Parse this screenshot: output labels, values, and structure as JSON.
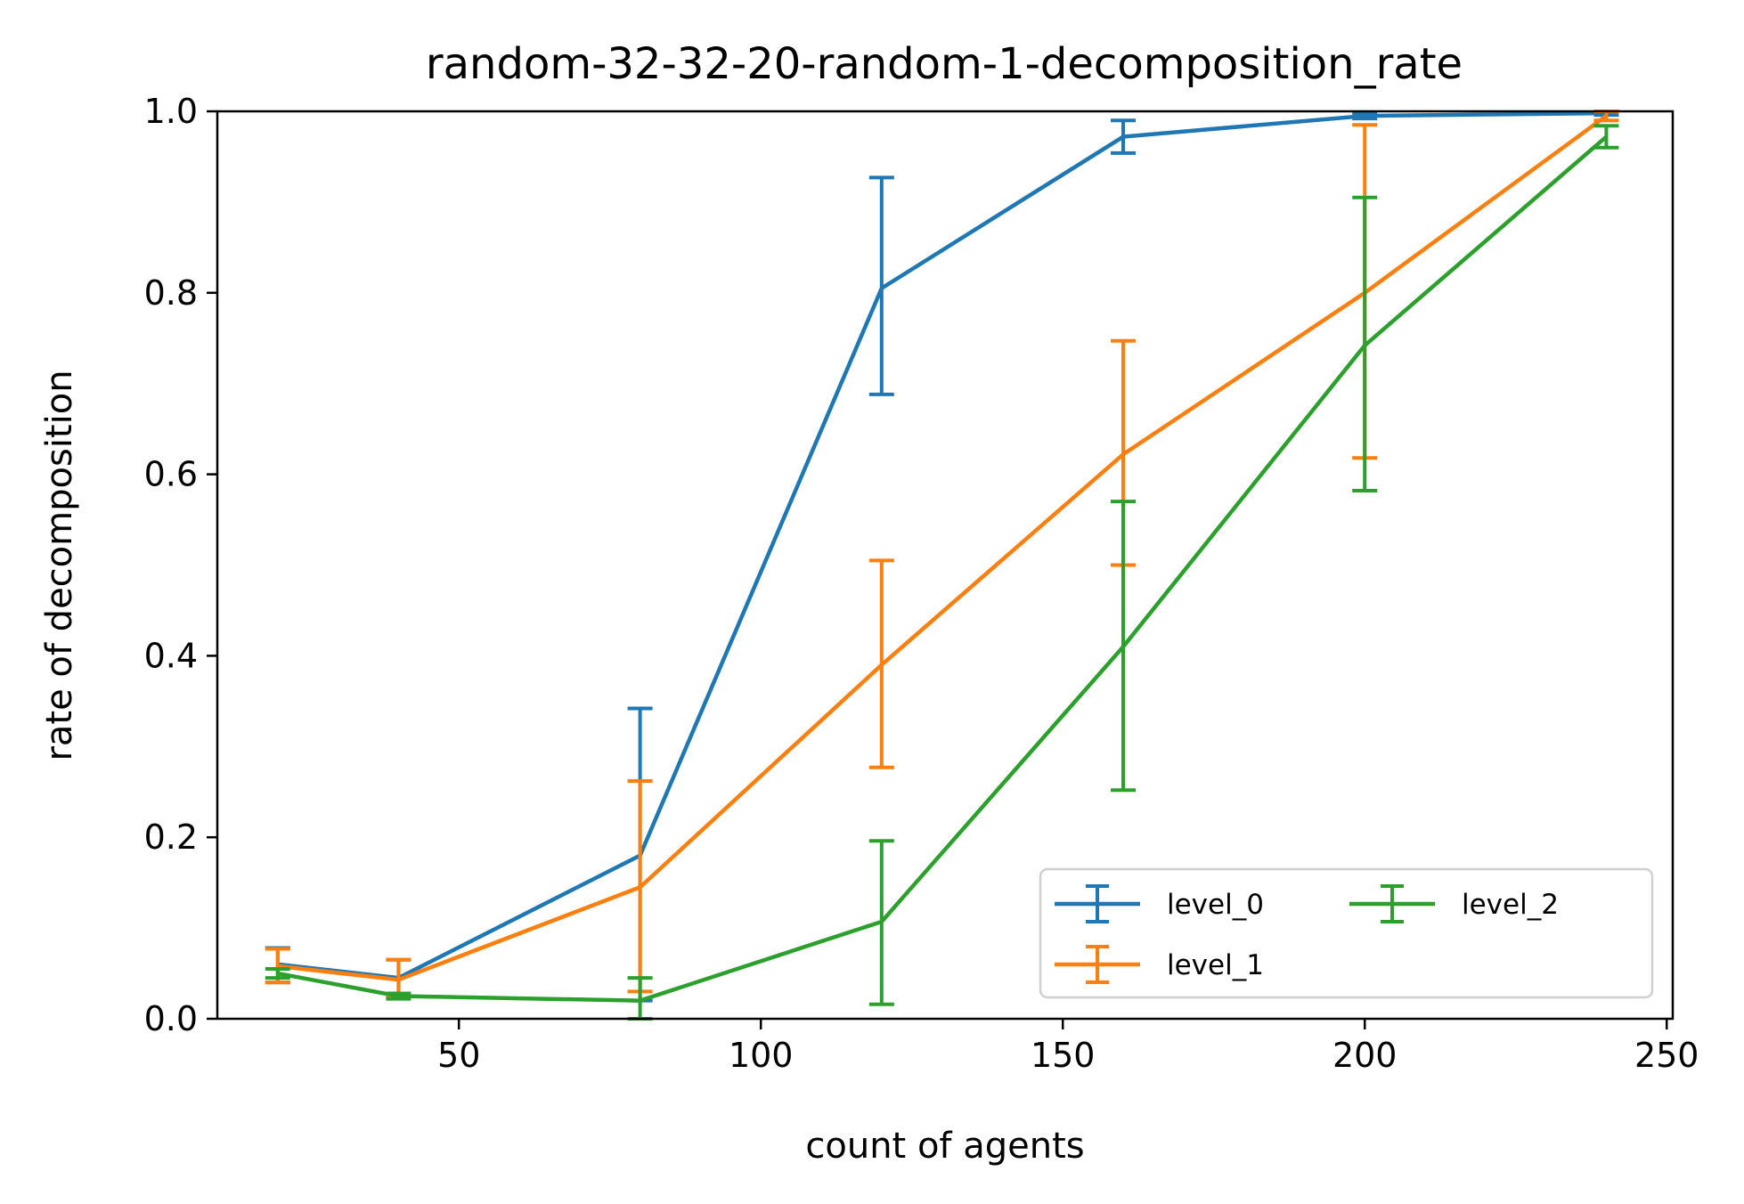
{
  "chart_data": {
    "type": "line",
    "title": "random-32-32-20-random-1-decomposition_rate",
    "xlabel": "count of agents",
    "ylabel": "rate of decomposition",
    "xlim": [
      10,
      251
    ],
    "ylim": [
      0.0,
      1.0
    ],
    "xticks": [
      50,
      100,
      150,
      200,
      250
    ],
    "yticks": [
      0.0,
      0.2,
      0.4,
      0.6,
      0.8,
      1.0
    ],
    "xtick_labels": [
      "50",
      "100",
      "150",
      "200",
      "250"
    ],
    "ytick_labels": [
      "0.0",
      "0.2",
      "0.4",
      "0.6",
      "0.8",
      "1.0"
    ],
    "grid": false,
    "legend_position": "lower-right",
    "legend_columns": 2,
    "x": [
      20,
      40,
      80,
      120,
      160,
      200,
      240
    ],
    "series": [
      {
        "name": "level_0",
        "color": "#1f77b4",
        "values": [
          0.06,
          0.045,
          0.18,
          0.805,
          0.972,
          0.995,
          0.998
        ],
        "err_low": [
          0.04,
          0.025,
          0.02,
          0.688,
          0.954,
          0.992,
          0.996
        ],
        "err_high": [
          0.078,
          0.065,
          0.342,
          0.927,
          0.99,
          0.998,
          1.0
        ]
      },
      {
        "name": "level_1",
        "color": "#ff7f0e",
        "values": [
          0.058,
          0.043,
          0.145,
          0.39,
          0.622,
          0.8,
          0.995
        ],
        "err_low": [
          0.04,
          0.025,
          0.03,
          0.277,
          0.5,
          0.618,
          0.99
        ],
        "err_high": [
          0.077,
          0.065,
          0.262,
          0.505,
          0.747,
          0.985,
          1.0
        ]
      },
      {
        "name": "level_2",
        "color": "#2ca02c",
        "values": [
          0.05,
          0.025,
          0.02,
          0.107,
          0.41,
          0.742,
          0.972
        ],
        "err_low": [
          0.045,
          0.022,
          0.0,
          0.016,
          0.252,
          0.582,
          0.96
        ],
        "err_high": [
          0.055,
          0.028,
          0.045,
          0.196,
          0.57,
          0.905,
          0.984
        ]
      }
    ]
  }
}
